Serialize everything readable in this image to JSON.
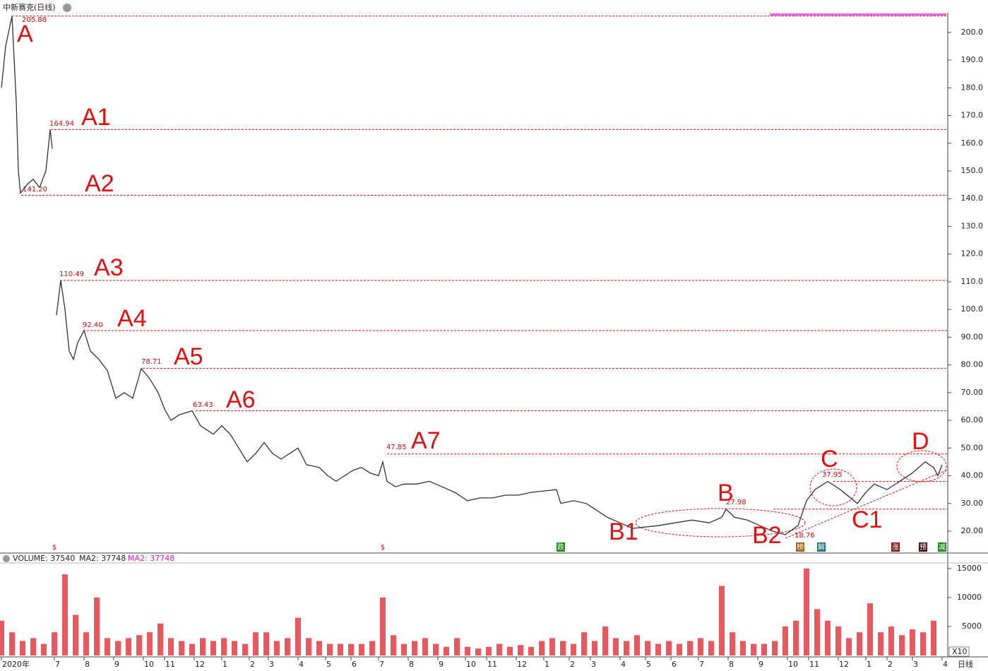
{
  "chart_data": {
    "type": "line",
    "title": "中新赛克(日线)",
    "x": [
      0,
      2,
      5,
      7,
      8,
      9,
      12,
      15,
      18,
      21,
      23,
      24,
      25,
      26,
      28,
      30,
      32,
      34,
      36,
      39,
      42,
      46,
      50,
      54,
      58,
      62,
      66,
      70,
      74,
      77,
      80,
      84,
      90,
      94,
      100,
      104,
      108,
      112,
      116,
      120,
      124,
      128,
      132,
      136,
      140,
      144,
      150,
      154,
      158,
      162,
      166,
      170,
      174,
      178,
      180,
      182,
      186,
      190,
      196,
      202,
      208,
      214,
      220,
      226,
      232,
      238,
      244,
      250,
      262,
      264,
      270,
      276,
      280,
      286,
      292,
      298,
      304,
      310,
      318,
      326,
      334,
      340,
      342,
      346,
      352,
      358,
      364,
      370,
      376,
      380,
      384,
      390,
      396,
      404,
      408,
      412,
      418,
      424,
      430,
      436,
      440,
      442,
      444
    ],
    "values": [
      180,
      195,
      205.88,
      175,
      150,
      142,
      145,
      147,
      144,
      150,
      164.94,
      158,
      null,
      98,
      110.49,
      100,
      85,
      82,
      88,
      92.4,
      85,
      82,
      78,
      68,
      70,
      68,
      78.71,
      75,
      70,
      64,
      60,
      62,
      63.43,
      58,
      55,
      58,
      55,
      50,
      45,
      48,
      52,
      48,
      46,
      48,
      50,
      44,
      43,
      40,
      38,
      40,
      42,
      43,
      41,
      40,
      45,
      38,
      36,
      37,
      37,
      38,
      36,
      34,
      31,
      32,
      32,
      33,
      33,
      34,
      35,
      30,
      31,
      30,
      28,
      25,
      23,
      21,
      21.5,
      22,
      23,
      24,
      23,
      25,
      27.98,
      25,
      24,
      22,
      20,
      18.76,
      22,
      31,
      35,
      37.95,
      35,
      30,
      34,
      37,
      35,
      38,
      41,
      45,
      43,
      40,
      44
    ],
    "color": "#333333",
    "xlim": [
      0,
      447
    ],
    "xticks": [
      {
        "value": 0,
        "label": "2020年"
      },
      {
        "value": 25,
        "label": "7"
      },
      {
        "value": 39,
        "label": "8"
      },
      {
        "value": 53,
        "label": "9"
      },
      {
        "value": 67,
        "label": "10"
      },
      {
        "value": 77,
        "label": "11"
      },
      {
        "value": 91,
        "label": "12"
      },
      {
        "value": 104,
        "label": "1"
      },
      {
        "value": 117,
        "label": "2"
      },
      {
        "value": 126,
        "label": "3"
      },
      {
        "value": 140,
        "label": "4"
      },
      {
        "value": 153,
        "label": "5"
      },
      {
        "value": 165,
        "label": "6"
      },
      {
        "value": 178,
        "label": "7"
      },
      {
        "value": 192,
        "label": "8"
      },
      {
        "value": 206,
        "label": "9"
      },
      {
        "value": 219,
        "label": "10"
      },
      {
        "value": 229,
        "label": "11"
      },
      {
        "value": 243,
        "label": "12"
      },
      {
        "value": 256,
        "label": "1"
      },
      {
        "value": 268,
        "label": "2"
      },
      {
        "value": 278,
        "label": "3"
      },
      {
        "value": 292,
        "label": "4"
      },
      {
        "value": 304,
        "label": "5"
      },
      {
        "value": 316,
        "label": "6"
      },
      {
        "value": 329,
        "label": "7"
      },
      {
        "value": 343,
        "label": "8"
      },
      {
        "value": 357,
        "label": "9"
      },
      {
        "value": 371,
        "label": "10"
      },
      {
        "value": 381,
        "label": "11"
      },
      {
        "value": 395,
        "label": "12"
      },
      {
        "value": 408,
        "label": "1"
      },
      {
        "value": 418,
        "label": "2"
      },
      {
        "value": 430,
        "label": "3"
      },
      {
        "value": 444,
        "label": "4"
      }
    ],
    "ylim": [
      12.1,
      207.1
    ],
    "yticks": [
      {
        "value": 20,
        "label": "20.00"
      },
      {
        "value": 30,
        "label": "30.00"
      },
      {
        "value": 40,
        "label": "40.00"
      },
      {
        "value": 50,
        "label": "50.00"
      },
      {
        "value": 60,
        "label": "60.00"
      },
      {
        "value": 70,
        "label": "70.00"
      },
      {
        "value": 80,
        "label": "80.00"
      },
      {
        "value": 90,
        "label": "90.00"
      },
      {
        "value": 100,
        "label": "100.0"
      },
      {
        "value": 110,
        "label": "110.0"
      },
      {
        "value": 120,
        "label": "120.0"
      },
      {
        "value": 130,
        "label": "130.0"
      },
      {
        "value": 140,
        "label": "140.0"
      },
      {
        "value": 150,
        "label": "150.0"
      },
      {
        "value": 160,
        "label": "160.0"
      },
      {
        "value": 170,
        "label": "170.0"
      },
      {
        "value": 180,
        "label": "180.0"
      },
      {
        "value": 190,
        "label": "190.0"
      },
      {
        "value": 200,
        "label": "200.0"
      }
    ],
    "annotations": [
      {
        "text": "A",
        "value": 205.88,
        "line": true
      },
      {
        "text": "A1",
        "value": 164.94,
        "line": true
      },
      {
        "text": "A2",
        "value": 141.2,
        "value_label": "141.20",
        "line": true
      },
      {
        "text": "A3",
        "value": 110.49,
        "line": true
      },
      {
        "text": "A4",
        "value": 92.4,
        "value_label": "92.40",
        "line": true
      },
      {
        "text": "A5",
        "value": 78.71,
        "line": true
      },
      {
        "text": "A6",
        "value": 63.43,
        "line": true
      },
      {
        "text": "A7",
        "value": 47.85,
        "line": true
      },
      {
        "text": "B",
        "value": 27.98,
        "line": true
      },
      {
        "text": "B1"
      },
      {
        "text": "B2",
        "value": 18.76,
        "line": false
      },
      {
        "text": "C",
        "value": 37.95,
        "line": true
      },
      {
        "text": "C1"
      },
      {
        "text": "D"
      }
    ],
    "events": [
      {
        "text": "$",
        "x": 25
      },
      {
        "text": "$",
        "x": 180
      },
      {
        "text": "跌",
        "x": 264
      },
      {
        "text": "榜",
        "x": 377
      },
      {
        "text": "解",
        "x": 387
      },
      {
        "text": "涨",
        "x": 422
      },
      {
        "text": "预",
        "x": 435
      },
      {
        "text": "减",
        "x": 444
      }
    ],
    "volume": {
      "legend": "VOLUME: 37540",
      "ma_legend": "MA2: 37748",
      "ma2_legend": "MA2: 37748",
      "color": "#e0202a",
      "x": [
        0,
        5,
        10,
        15,
        20,
        25,
        30,
        35,
        40,
        45,
        50,
        55,
        60,
        65,
        70,
        75,
        80,
        85,
        90,
        95,
        100,
        105,
        110,
        115,
        120,
        125,
        130,
        135,
        140,
        145,
        150,
        155,
        160,
        165,
        170,
        175,
        180,
        185,
        190,
        195,
        200,
        205,
        210,
        215,
        220,
        225,
        230,
        235,
        240,
        245,
        250,
        255,
        260,
        265,
        270,
        275,
        280,
        285,
        290,
        295,
        300,
        305,
        310,
        315,
        320,
        325,
        330,
        335,
        340,
        345,
        350,
        355,
        360,
        365,
        370,
        375,
        380,
        385,
        390,
        395,
        400,
        405,
        410,
        415,
        420,
        425,
        430,
        435,
        440
      ],
      "values": [
        6000,
        4000,
        2500,
        3000,
        2000,
        4000,
        14000,
        7000,
        4000,
        10000,
        3000,
        2500,
        3000,
        3500,
        4000,
        5500,
        3000,
        2500,
        2000,
        3000,
        2500,
        3000,
        2500,
        2000,
        4000,
        4000,
        2500,
        3000,
        6500,
        3000,
        2500,
        2000,
        2000,
        2000,
        2000,
        2500,
        10000,
        3500,
        2000,
        2500,
        3000,
        2000,
        1500,
        3000,
        1500,
        1200,
        1500,
        2000,
        1500,
        1800,
        1500,
        2500,
        3000,
        2500,
        2000,
        4000,
        2500,
        5000,
        3000,
        2500,
        3500,
        2500,
        2000,
        2500,
        2000,
        2500,
        3000,
        2500,
        12000,
        4000,
        2500,
        2000,
        2000,
        2500,
        5000,
        6000,
        15000,
        8000,
        6000,
        5000,
        3000,
        4000,
        9000,
        4000,
        5000,
        3500,
        4500,
        4000,
        6000
      ],
      "ylim": [
        0,
        15600
      ],
      "yticks": [
        5000,
        10000,
        15000
      ]
    },
    "period_label": "日线",
    "zoom_label": "X10"
  }
}
